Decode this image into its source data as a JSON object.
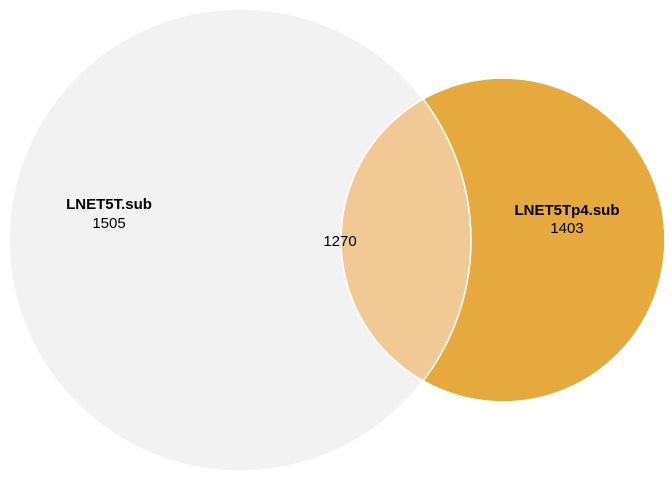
{
  "venn": {
    "sets": [
      {
        "name": "LNET5T.sub",
        "count": "1505",
        "color": "#f2f2f2"
      },
      {
        "name": "LNET5Tp4.sub",
        "count": "1403",
        "color": "#e5a93d"
      }
    ],
    "intersection": {
      "count": "1270",
      "color": "#f0c994"
    },
    "outline_color": "#ffffff"
  }
}
